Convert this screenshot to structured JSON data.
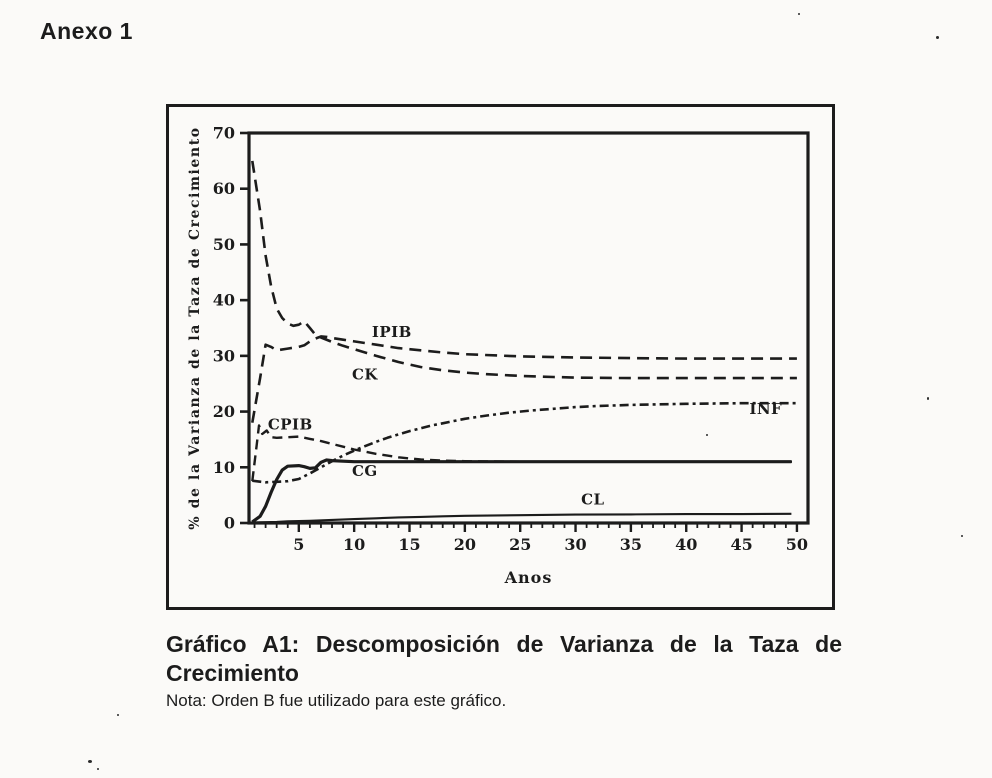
{
  "page": {
    "header": "Anexo 1",
    "caption_title": "Gráfico A1: Descomposición de Varianza de la Taza de Crecimiento",
    "caption_note": "Nota: Orden B fue utilizado para este gráfico."
  },
  "colors": {
    "ink": "#1c1c1c",
    "paper": "#fbfaf8"
  },
  "chart_data": {
    "type": "line",
    "title": "",
    "xlabel": "Anos",
    "ylabel": "% de la Varianza de la Taza de Crecimiento",
    "xlim": [
      0.5,
      51
    ],
    "ylim": [
      0,
      70
    ],
    "x_major_ticks": [
      5,
      10,
      15,
      20,
      25,
      30,
      35,
      40,
      45,
      50
    ],
    "x_minor_tick_step": 1,
    "y_ticks": [
      0,
      10,
      20,
      30,
      40,
      50,
      60,
      70
    ],
    "grid": false,
    "legend": "inline-labels",
    "series": [
      {
        "name": "CK",
        "style": "long-dash",
        "label": {
          "text": "CK",
          "x": 9.8,
          "y": 25.8
        },
        "points": [
          [
            0.8,
            65
          ],
          [
            1.5,
            56
          ],
          [
            2,
            48
          ],
          [
            2.5,
            42.5
          ],
          [
            3,
            38.5
          ],
          [
            3.5,
            36.8
          ],
          [
            4,
            35.8
          ],
          [
            4.5,
            35.4
          ],
          [
            5,
            35.6
          ],
          [
            5.5,
            36.2
          ],
          [
            6,
            35.0
          ],
          [
            6.5,
            33.8
          ],
          [
            7,
            33.3
          ],
          [
            8,
            32.5
          ],
          [
            9,
            31.8
          ],
          [
            10,
            31.2
          ],
          [
            12,
            30.0
          ],
          [
            14,
            28.9
          ],
          [
            16,
            28.0
          ],
          [
            18,
            27.4
          ],
          [
            20,
            27.0
          ],
          [
            22,
            26.7
          ],
          [
            25,
            26.4
          ],
          [
            28,
            26.2
          ],
          [
            30,
            26.1
          ],
          [
            35,
            26.0
          ],
          [
            40,
            26.0
          ],
          [
            45,
            26.0
          ],
          [
            50,
            26.0
          ]
        ]
      },
      {
        "name": "IPIB",
        "style": "long-dash",
        "label": {
          "text": "IPIB",
          "x": 11.6,
          "y": 33.4
        },
        "points": [
          [
            0.8,
            18
          ],
          [
            1.5,
            26
          ],
          [
            2,
            32
          ],
          [
            2.5,
            31.6
          ],
          [
            3,
            31.0
          ],
          [
            4,
            31.3
          ],
          [
            5,
            31.6
          ],
          [
            5.5,
            31.9
          ],
          [
            6,
            32.6
          ],
          [
            6.5,
            33.1
          ],
          [
            7,
            33.5
          ],
          [
            7.5,
            33.4
          ],
          [
            8,
            33.2
          ],
          [
            9,
            32.9
          ],
          [
            10,
            32.6
          ],
          [
            12,
            32.0
          ],
          [
            14,
            31.4
          ],
          [
            16,
            31.0
          ],
          [
            18,
            30.6
          ],
          [
            20,
            30.3
          ],
          [
            25,
            29.9
          ],
          [
            30,
            29.7
          ],
          [
            35,
            29.6
          ],
          [
            40,
            29.5
          ],
          [
            45,
            29.5
          ],
          [
            50,
            29.5
          ]
        ]
      },
      {
        "name": "INF",
        "style": "dash-dot",
        "label": {
          "text": "INF",
          "x": 45.7,
          "y": 19.6
        },
        "points": [
          [
            0.8,
            7.6
          ],
          [
            2,
            7.3
          ],
          [
            3,
            7.4
          ],
          [
            4,
            7.5
          ],
          [
            5,
            7.9
          ],
          [
            6,
            8.9
          ],
          [
            7,
            10.0
          ],
          [
            8,
            11.1
          ],
          [
            9,
            12.1
          ],
          [
            10,
            13.0
          ],
          [
            11,
            13.8
          ],
          [
            12,
            14.6
          ],
          [
            13,
            15.3
          ],
          [
            14,
            15.9
          ],
          [
            15,
            16.5
          ],
          [
            16,
            17.0
          ],
          [
            17,
            17.5
          ],
          [
            18,
            17.9
          ],
          [
            19,
            18.3
          ],
          [
            20,
            18.7
          ],
          [
            22,
            19.3
          ],
          [
            24,
            19.8
          ],
          [
            26,
            20.2
          ],
          [
            28,
            20.5
          ],
          [
            30,
            20.8
          ],
          [
            32,
            21.0
          ],
          [
            35,
            21.2
          ],
          [
            40,
            21.4
          ],
          [
            45,
            21.5
          ],
          [
            50,
            21.5
          ]
        ]
      },
      {
        "name": "CPIB",
        "style": "dash",
        "label": {
          "text": "CPIB",
          "x": 2.2,
          "y": 16.8
        },
        "points": [
          [
            0.8,
            7.5
          ],
          [
            1.2,
            14.0
          ],
          [
            1.4,
            17.5
          ],
          [
            1.7,
            16.0
          ],
          [
            2.1,
            16.6
          ],
          [
            2.5,
            15.4
          ],
          [
            3,
            15.3
          ],
          [
            4,
            15.4
          ],
          [
            5,
            15.5
          ],
          [
            6,
            15.1
          ],
          [
            7,
            14.7
          ],
          [
            8,
            14.2
          ],
          [
            9,
            13.7
          ],
          [
            10,
            13.2
          ],
          [
            11,
            12.8
          ],
          [
            12,
            12.4
          ],
          [
            13,
            12.1
          ],
          [
            14,
            11.8
          ],
          [
            15,
            11.6
          ],
          [
            16,
            11.4
          ],
          [
            18,
            11.2
          ],
          [
            20,
            11.1
          ],
          [
            25,
            11.0
          ],
          [
            30,
            11.0
          ],
          [
            40,
            11.0
          ],
          [
            50,
            11.0
          ]
        ]
      },
      {
        "name": "CG",
        "style": "solid-thick",
        "label": {
          "text": "CG",
          "x": 9.8,
          "y": 8.4
        },
        "points": [
          [
            0.8,
            0.2
          ],
          [
            1.5,
            1.2
          ],
          [
            2,
            3.0
          ],
          [
            2.5,
            5.5
          ],
          [
            3,
            7.8
          ],
          [
            3.5,
            9.5
          ],
          [
            4,
            10.2
          ],
          [
            5,
            10.3
          ],
          [
            5.5,
            10.1
          ],
          [
            6,
            9.8
          ],
          [
            6.5,
            9.9
          ],
          [
            7,
            10.9
          ],
          [
            7.5,
            11.3
          ],
          [
            8,
            11.2
          ],
          [
            9,
            11.1
          ],
          [
            10,
            11.0
          ],
          [
            15,
            11.0
          ],
          [
            20,
            11.0
          ],
          [
            30,
            11.0
          ],
          [
            40,
            11.0
          ],
          [
            49.5,
            11.0
          ]
        ]
      },
      {
        "name": "CL",
        "style": "solid",
        "label": {
          "text": "CL",
          "x": 30.5,
          "y": 3.3
        },
        "points": [
          [
            0.8,
            0.1
          ],
          [
            2,
            0.15
          ],
          [
            3,
            0.2
          ],
          [
            4,
            0.3
          ],
          [
            5,
            0.35
          ],
          [
            6,
            0.4
          ],
          [
            8,
            0.55
          ],
          [
            10,
            0.7
          ],
          [
            12,
            0.85
          ],
          [
            14,
            1.0
          ],
          [
            16,
            1.1
          ],
          [
            18,
            1.2
          ],
          [
            20,
            1.3
          ],
          [
            25,
            1.4
          ],
          [
            30,
            1.5
          ],
          [
            35,
            1.55
          ],
          [
            40,
            1.6
          ],
          [
            45,
            1.6
          ],
          [
            49.5,
            1.65
          ]
        ]
      }
    ]
  }
}
